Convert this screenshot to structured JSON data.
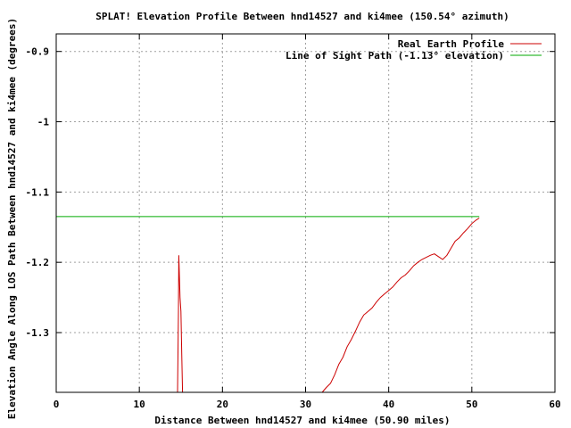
{
  "chart_data": {
    "type": "line",
    "title": "SPLAT! Elevation Profile Between hnd14527 and ki4mee (150.54° azimuth)",
    "xlabel": "Distance Between hnd14527 and ki4mee (50.90 miles)",
    "ylabel": "Elevation Angle Along LOS Path Between hnd14527 and ki4mee (degrees)",
    "xlim": [
      0,
      60
    ],
    "ylim": [
      -1.385,
      -0.875
    ],
    "x_ticks": [
      0,
      10,
      20,
      30,
      40,
      50,
      60
    ],
    "x_tick_labels": [
      "0",
      "10",
      "20",
      "30",
      "40",
      "50",
      "60"
    ],
    "y_ticks": [
      -0.9,
      -1,
      -1.1,
      -1.2,
      -1.3
    ],
    "y_tick_labels": [
      "-0.9",
      "-1",
      "-1.1",
      "-1.2",
      "-1.3"
    ],
    "grid": true,
    "legend_position": "top-right",
    "series": [
      {
        "name": "Real Earth Profile",
        "color": "#cc0000",
        "segments": [
          [
            [
              14.6,
              -1.385
            ],
            [
              14.7,
              -1.27
            ],
            [
              14.75,
              -1.19
            ],
            [
              14.82,
              -1.22
            ],
            [
              14.9,
              -1.25
            ],
            [
              15.0,
              -1.27
            ],
            [
              15.1,
              -1.33
            ],
            [
              15.2,
              -1.385
            ]
          ],
          [
            [
              32.0,
              -1.385
            ],
            [
              32.5,
              -1.378
            ],
            [
              33.0,
              -1.372
            ],
            [
              33.5,
              -1.36
            ],
            [
              34.0,
              -1.345
            ],
            [
              34.5,
              -1.335
            ],
            [
              35.0,
              -1.32
            ],
            [
              35.5,
              -1.31
            ],
            [
              36.0,
              -1.298
            ],
            [
              36.5,
              -1.285
            ],
            [
              37.0,
              -1.275
            ],
            [
              37.5,
              -1.27
            ],
            [
              38.0,
              -1.265
            ],
            [
              38.5,
              -1.257
            ],
            [
              39.0,
              -1.25
            ],
            [
              39.5,
              -1.245
            ],
            [
              40.0,
              -1.24
            ],
            [
              40.5,
              -1.235
            ],
            [
              41.0,
              -1.228
            ],
            [
              41.5,
              -1.222
            ],
            [
              42.0,
              -1.218
            ],
            [
              42.5,
              -1.212
            ],
            [
              43.0,
              -1.205
            ],
            [
              43.5,
              -1.2
            ],
            [
              44.0,
              -1.196
            ],
            [
              44.5,
              -1.193
            ],
            [
              45.0,
              -1.19
            ],
            [
              45.5,
              -1.188
            ],
            [
              46.0,
              -1.192
            ],
            [
              46.5,
              -1.196
            ],
            [
              47.0,
              -1.19
            ],
            [
              47.5,
              -1.18
            ],
            [
              48.0,
              -1.17
            ],
            [
              48.5,
              -1.165
            ],
            [
              49.0,
              -1.158
            ],
            [
              49.5,
              -1.152
            ],
            [
              50.0,
              -1.145
            ],
            [
              50.5,
              -1.14
            ],
            [
              50.9,
              -1.137
            ]
          ]
        ]
      },
      {
        "name": "Line of Sight Path (-1.13° elevation)",
        "color": "#00aa00",
        "segments": [
          [
            [
              0,
              -1.135
            ],
            [
              50.9,
              -1.135
            ]
          ]
        ]
      }
    ]
  }
}
